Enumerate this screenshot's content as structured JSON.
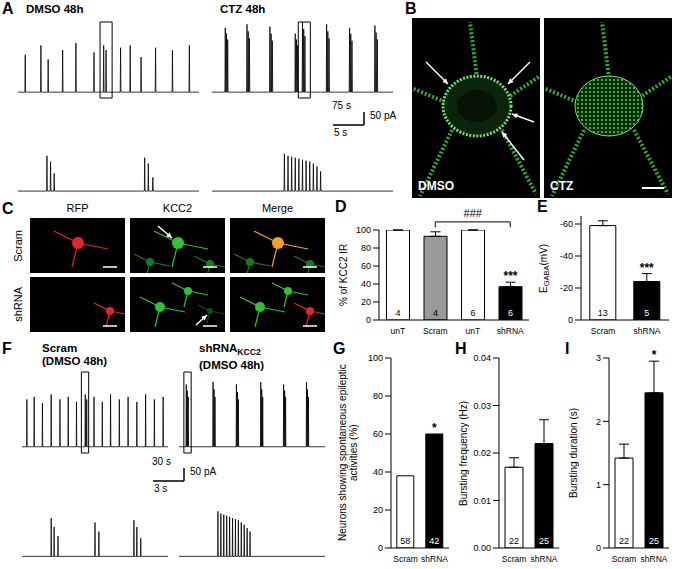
{
  "panel_A": {
    "title": "A",
    "scale_bar": {
      "overview_x": "75 s",
      "zoom_x": "5 s",
      "y": "50 pA"
    },
    "traces": [
      {
        "name": "DMSO 48h",
        "overview": {
          "xlim": [
            0,
            300
          ],
          "ylim": [
            -5,
            60
          ],
          "spike_times": [
            12,
            38,
            50,
            74,
            96,
            126,
            142,
            146,
            170,
            186,
            204,
            228,
            256,
            284
          ],
          "spike_amplitudes": [
            32,
            40,
            28,
            36,
            42,
            34,
            40,
            36,
            38,
            40,
            30,
            38,
            36,
            40
          ],
          "box_start": 136
        },
        "zoom": {
          "xlim": [
            0,
            20
          ],
          "ylim": [
            -5,
            50
          ],
          "spike_times": [
            3.2,
            3.6,
            4.0,
            14.0,
            14.4,
            14.9
          ],
          "spike_amplitudes": [
            36,
            30,
            18,
            34,
            28,
            14
          ]
        }
      },
      {
        "name": "CTZ 48h",
        "overview": {
          "xlim": [
            0,
            300
          ],
          "ylim": [
            -5,
            60
          ],
          "spike_times": [
            22,
            24,
            26,
            58,
            60,
            62,
            96,
            98,
            100,
            138,
            140,
            142,
            150,
            152,
            154,
            190,
            192,
            194,
            228,
            230,
            232,
            270,
            272,
            274
          ],
          "spike_amplitudes": [
            55,
            50,
            45,
            58,
            52,
            46,
            56,
            50,
            44,
            50,
            45,
            40,
            60,
            54,
            48,
            58,
            52,
            46,
            55,
            50,
            44,
            57,
            51,
            45
          ],
          "box_start": 143
        },
        "zoom": {
          "xlim": [
            0,
            20
          ],
          "ylim": [
            -5,
            50
          ],
          "spike_times": [
            8.0,
            8.4,
            8.8,
            9.2,
            9.6,
            10.0,
            10.4,
            10.8,
            11.2,
            11.6,
            12.0
          ],
          "spike_amplitudes": [
            38,
            36,
            35,
            34,
            33,
            32,
            31,
            30,
            28,
            25,
            20
          ]
        }
      }
    ]
  },
  "panel_B": {
    "title": "B",
    "images": [
      "DMSO",
      "CTZ"
    ]
  },
  "panel_C": {
    "title": "C",
    "columns": [
      "RFP",
      "KCC2",
      "Merge"
    ],
    "rows": [
      "Scram",
      "shRNA"
    ]
  },
  "panel_F": {
    "title": "F",
    "scale_bar": {
      "overview_x": "30 s",
      "zoom_x": "3 s",
      "y": "50 pA"
    },
    "traces": [
      {
        "name": "Scram",
        "condition": "(DMSO 48h)",
        "overview": {
          "xlim": [
            0,
            300
          ],
          "ylim": [
            -5,
            60
          ],
          "spike_times": [
            10,
            25,
            42,
            60,
            78,
            95,
            112,
            130,
            133,
            148,
            165,
            182,
            200,
            218,
            236,
            254,
            272,
            290
          ],
          "spike_amplitudes": [
            38,
            40,
            35,
            42,
            38,
            40,
            36,
            42,
            38,
            40,
            36,
            42,
            38,
            40,
            36,
            42,
            38,
            40
          ],
          "box_start": 122
        },
        "zoom": {
          "xlim": [
            0,
            15
          ],
          "ylim": [
            -5,
            50
          ],
          "spike_times": [
            3.0,
            3.3,
            3.7,
            7.5,
            7.9,
            11.5,
            11.8,
            12.2
          ],
          "spike_amplitudes": [
            34,
            26,
            18,
            30,
            22,
            32,
            26,
            16
          ]
        }
      },
      {
        "name": "shRNA",
        "subscript": "KCC2",
        "condition": "(DMSO 48h)",
        "overview": {
          "xlim": [
            0,
            300
          ],
          "ylim": [
            -5,
            60
          ],
          "spike_times": [
            15,
            17,
            19,
            70,
            72,
            74,
            118,
            120,
            122,
            168,
            170,
            172,
            215,
            217,
            219,
            262,
            264,
            266
          ],
          "spike_amplitudes": [
            50,
            45,
            40,
            52,
            46,
            40,
            50,
            44,
            38,
            52,
            46,
            40,
            50,
            45,
            40,
            52,
            46,
            40
          ],
          "box_start": 10
        },
        "zoom": {
          "xlim": [
            0,
            15
          ],
          "ylim": [
            -5,
            50
          ],
          "spike_times": [
            4.0,
            4.3,
            4.6,
            4.9,
            5.2,
            5.5,
            5.8,
            6.1,
            6.4,
            6.7,
            7.0,
            7.3
          ],
          "spike_amplitudes": [
            40,
            38,
            37,
            36,
            35,
            34,
            33,
            32,
            30,
            28,
            25,
            22
          ]
        }
      }
    ]
  },
  "chart_data": [
    {
      "type": "bar",
      "title": "D",
      "ylabel": "% of KCC2 IR",
      "categories": [
        "unT",
        "Scram",
        "unT",
        "shRNA"
      ],
      "values": [
        100,
        93,
        100,
        37
      ],
      "errors": [
        0,
        5,
        0,
        5
      ],
      "n": [
        4,
        4,
        6,
        6
      ],
      "colors": [
        "#ffffff",
        "#999999",
        "#ffffff",
        "#000000"
      ],
      "ylim": [
        0,
        100
      ],
      "yticks": [
        0,
        20,
        40,
        60,
        80,
        100
      ],
      "annotations": [
        {
          "index": 3,
          "text": "***"
        }
      ],
      "bracket": {
        "from": 1,
        "to": 3,
        "text": "###"
      }
    },
    {
      "type": "bar",
      "title": "E",
      "ylabel": {
        "main": "E",
        "sub": "GABA",
        "rest": "(mV)"
      },
      "categories": [
        "Scram",
        "shRNA"
      ],
      "values": [
        -59,
        -24
      ],
      "errors": [
        3,
        5
      ],
      "n": [
        13,
        5
      ],
      "colors": [
        "#ffffff",
        "#000000"
      ],
      "ylim": [
        0,
        -65
      ],
      "yticks": [
        0,
        -20,
        -40,
        -60
      ],
      "annotations": [
        {
          "index": 1,
          "text": "***"
        }
      ]
    },
    {
      "type": "bar",
      "title": "G",
      "ylabel": "Neurons showing spontaneous epileptic activities (%)",
      "categories": [
        "Scram",
        "shRNA"
      ],
      "values": [
        38,
        60
      ],
      "n": [
        58,
        42
      ],
      "colors": [
        "#ffffff",
        "#000000"
      ],
      "ylim": [
        0,
        100
      ],
      "yticks": [
        0,
        20,
        40,
        60,
        80,
        100
      ],
      "annotations": [
        {
          "index": 1,
          "text": "*"
        }
      ]
    },
    {
      "type": "bar",
      "title": "H",
      "ylabel": "Bursting frequency (Hz)",
      "categories": [
        "Scram",
        "shRNA"
      ],
      "values": [
        0.017,
        0.022
      ],
      "errors": [
        0.002,
        0.005
      ],
      "n": [
        22,
        25
      ],
      "colors": [
        "#ffffff",
        "#000000"
      ],
      "ylim": [
        0,
        0.04
      ],
      "yticks": [
        {
          "value": 0,
          "label": "0.00"
        },
        0.01,
        0.02,
        0.03,
        0.04
      ]
    },
    {
      "type": "bar",
      "title": "I",
      "ylabel": "Bursting duration (s)",
      "categories": [
        "Scram",
        "shRNA"
      ],
      "values": [
        1.42,
        2.45
      ],
      "errors": [
        0.22,
        0.5
      ],
      "n": [
        22,
        25
      ],
      "colors": [
        "#ffffff",
        "#000000"
      ],
      "ylim": [
        0,
        3
      ],
      "yticks": [
        0,
        1,
        2,
        3
      ],
      "annotations": [
        {
          "index": 1,
          "text": "*"
        }
      ]
    }
  ]
}
